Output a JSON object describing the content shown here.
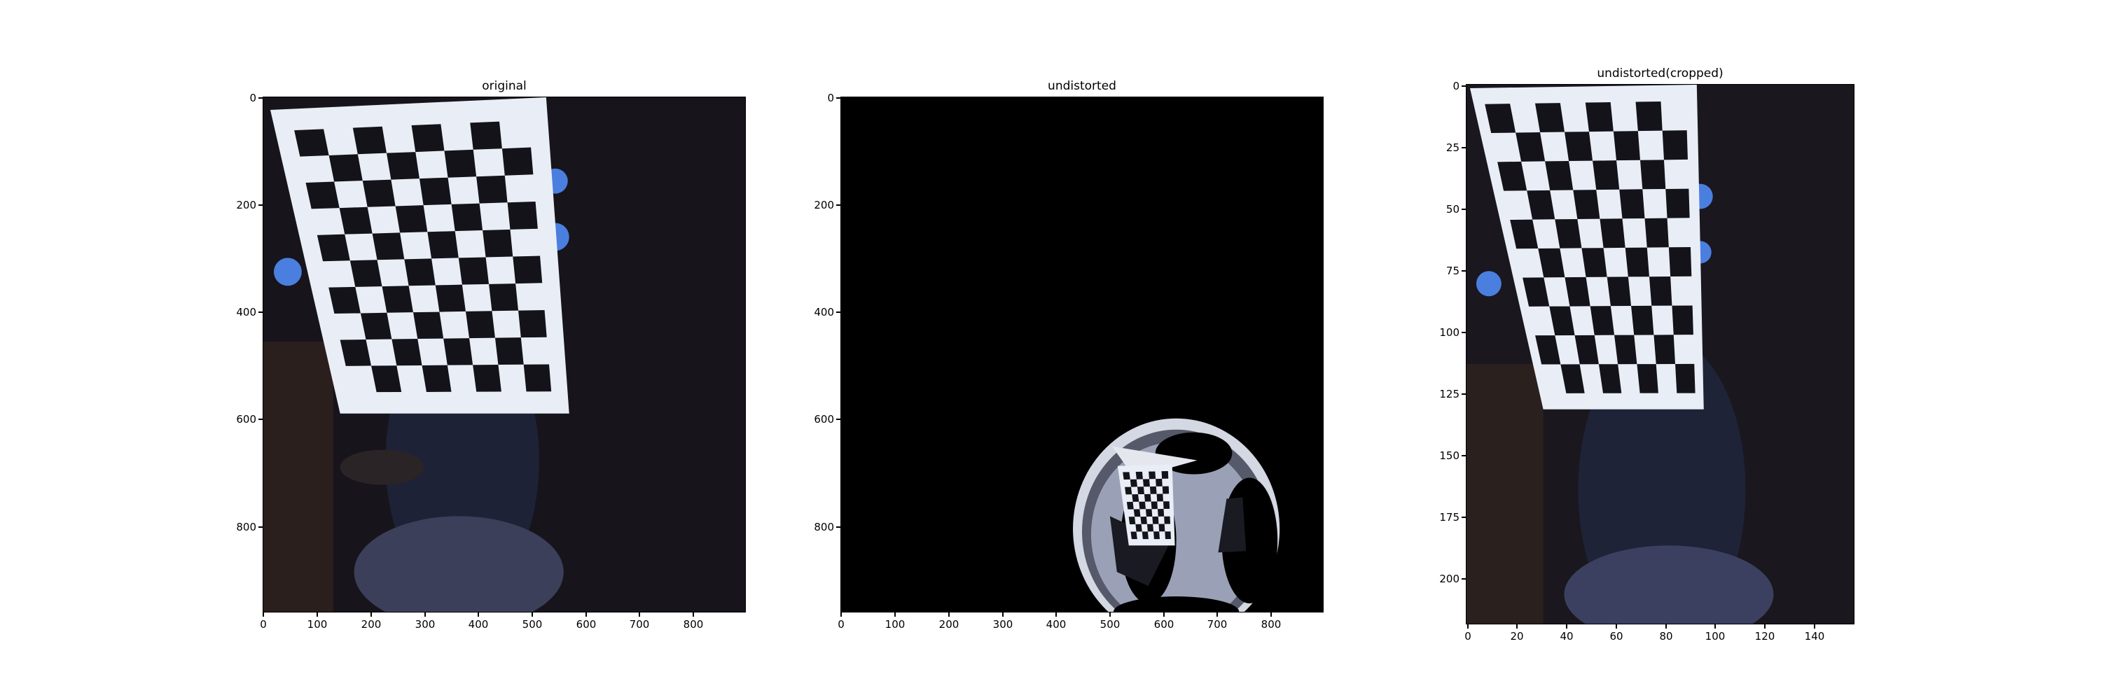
{
  "panels": [
    {
      "title": "original",
      "x_ticks": [
        "0",
        "100",
        "200",
        "300",
        "400",
        "500",
        "600",
        "700",
        "800"
      ],
      "y_ticks": [
        "0",
        "200",
        "400",
        "600",
        "800"
      ]
    },
    {
      "title": "undistorted",
      "x_ticks": [
        "0",
        "100",
        "200",
        "300",
        "400",
        "500",
        "600",
        "700",
        "800"
      ],
      "y_ticks": [
        "0",
        "200",
        "400",
        "600",
        "800"
      ]
    },
    {
      "title": "undistorted(cropped)",
      "x_ticks": [
        "0",
        "20",
        "40",
        "60",
        "80",
        "100",
        "120",
        "140"
      ],
      "y_ticks": [
        "0",
        "25",
        "50",
        "75",
        "100",
        "125",
        "150",
        "175",
        "200"
      ]
    }
  ],
  "colors": {
    "scene_dark": "#17141b",
    "board_white": "#e9eef6",
    "board_black": "#14131a",
    "blue_glow": "#4a7fe0",
    "background": "#000000"
  }
}
